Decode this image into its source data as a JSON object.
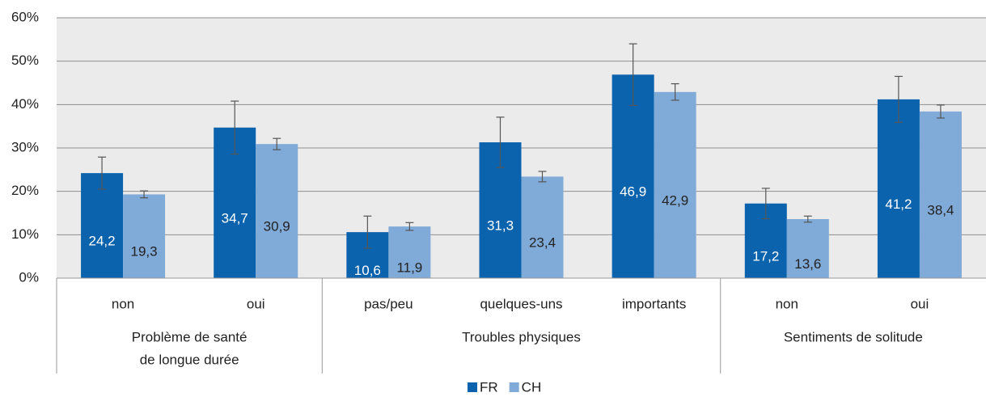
{
  "chart_data": {
    "type": "bar",
    "groups": [
      {
        "label": [
          "Problème de santé",
          "de longue durée"
        ],
        "categories": [
          "non",
          "oui"
        ]
      },
      {
        "label": [
          "Troubles physiques"
        ],
        "categories": [
          "pas/peu",
          "quelques-uns",
          "importants"
        ]
      },
      {
        "label": [
          "Sentiments de solitude"
        ],
        "categories": [
          "non",
          "oui"
        ]
      }
    ],
    "series": [
      {
        "name": "FR",
        "color": "#0b63ad",
        "label_color": "#ffffff",
        "values": [
          24.2,
          34.7,
          10.6,
          31.3,
          46.9,
          17.2,
          41.2
        ],
        "value_labels": [
          "24,2",
          "34,7",
          "10,6",
          "31,3",
          "46,9",
          "17,2",
          "41,2"
        ],
        "errors": [
          3.7,
          6.1,
          3.7,
          5.8,
          7.1,
          3.5,
          5.3
        ]
      },
      {
        "name": "CH",
        "color": "#80aad7",
        "label_color": "#222222",
        "values": [
          19.3,
          30.9,
          11.9,
          23.4,
          42.9,
          13.6,
          38.4
        ],
        "value_labels": [
          "19,3",
          "30,9",
          "11,9",
          "23,4",
          "42,9",
          "13,6",
          "38,4"
        ],
        "errors": [
          0.8,
          1.3,
          0.9,
          1.2,
          1.9,
          0.7,
          1.5
        ]
      }
    ],
    "ylim": [
      0,
      60
    ],
    "yticks": [
      {
        "value": 0,
        "label": "0%"
      },
      {
        "value": 10,
        "label": "10%"
      },
      {
        "value": 20,
        "label": "20%"
      },
      {
        "value": 30,
        "label": "30%"
      },
      {
        "value": 40,
        "label": "40%"
      },
      {
        "value": 50,
        "label": "50%"
      },
      {
        "value": 60,
        "label": "60%"
      }
    ],
    "grid": true,
    "legend": "bottom"
  }
}
